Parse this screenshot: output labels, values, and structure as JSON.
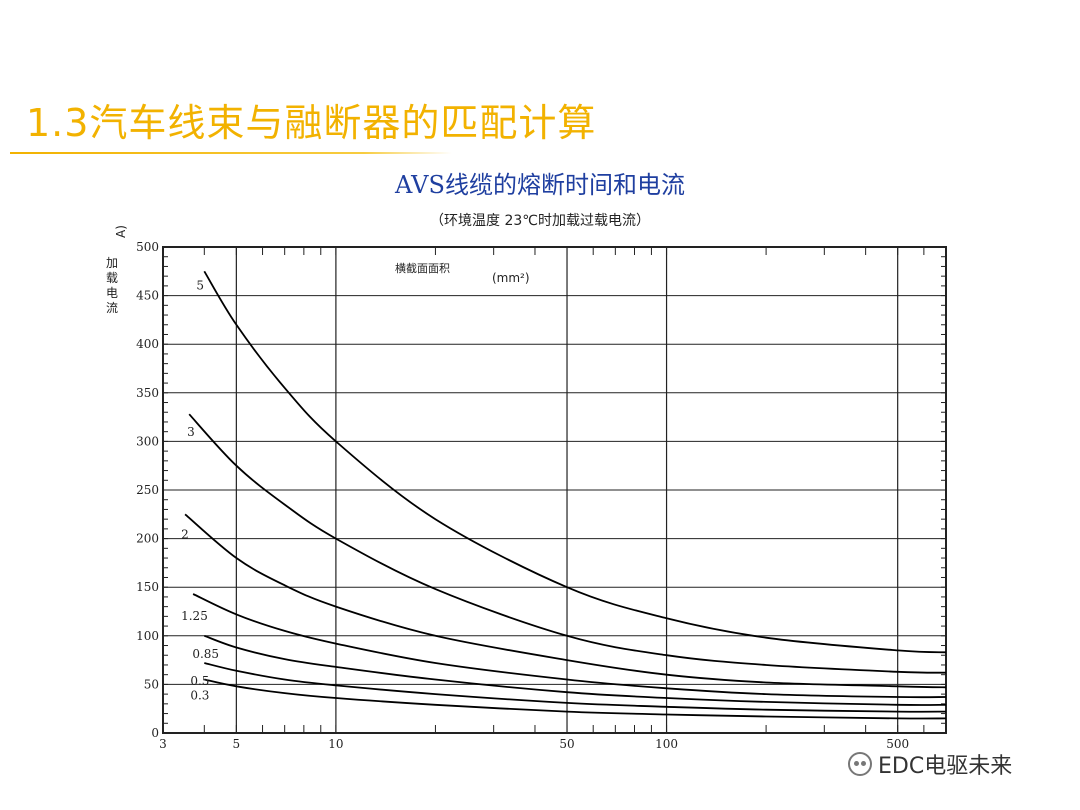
{
  "slide": {
    "title": "1.3汽车线束与融断器的匹配计算"
  },
  "watermark": {
    "icon": "wechat-icon",
    "text": "EDC电驱未来"
  },
  "chart_data": {
    "type": "line",
    "title": "AVS线缆的熔断时间和电流",
    "subtitle": "（环境温度 23℃时加载过载电流）",
    "ylabel": "加载电流",
    "yunit": "A)",
    "legend_title": "横截面面积",
    "legend_unit": "(mm²)",
    "xscale": "log",
    "xlim": [
      3,
      700
    ],
    "ylim": [
      0,
      500
    ],
    "x_ticks": [
      3,
      5,
      10,
      50,
      100,
      500
    ],
    "y_ticks": [
      0,
      50,
      100,
      150,
      200,
      250,
      300,
      350,
      400,
      450,
      500
    ],
    "grid": true,
    "series": [
      {
        "name": "5",
        "x": [
          4,
          5,
          7,
          10,
          20,
          50,
          100,
          200,
          500,
          700
        ],
        "y": [
          475,
          420,
          355,
          300,
          220,
          150,
          118,
          98,
          85,
          83
        ]
      },
      {
        "name": "3",
        "x": [
          3.6,
          5,
          7,
          10,
          20,
          50,
          100,
          200,
          500,
          700
        ],
        "y": [
          328,
          275,
          235,
          200,
          148,
          100,
          80,
          70,
          63,
          62
        ]
      },
      {
        "name": "2",
        "x": [
          3.5,
          5,
          7,
          10,
          20,
          50,
          100,
          200,
          500,
          700
        ],
        "y": [
          225,
          180,
          152,
          130,
          100,
          75,
          60,
          52,
          48,
          47
        ]
      },
      {
        "name": "1.25",
        "x": [
          3.7,
          5,
          7,
          10,
          20,
          50,
          100,
          200,
          500,
          700
        ],
        "y": [
          143,
          122,
          105,
          92,
          72,
          55,
          46,
          40,
          37,
          37
        ]
      },
      {
        "name": "0.85",
        "x": [
          4,
          5,
          7,
          10,
          20,
          50,
          100,
          200,
          500,
          700
        ],
        "y": [
          100,
          88,
          76,
          68,
          55,
          42,
          36,
          32,
          29,
          29
        ]
      },
      {
        "name": "0.5",
        "x": [
          4,
          5,
          7,
          10,
          20,
          50,
          100,
          200,
          500,
          700
        ],
        "y": [
          72,
          64,
          55,
          49,
          40,
          31,
          27,
          24,
          22,
          22
        ]
      },
      {
        "name": "0.3",
        "x": [
          4,
          5,
          7,
          10,
          20,
          50,
          100,
          200,
          500,
          700
        ],
        "y": [
          55,
          48,
          41,
          36,
          29,
          22,
          19,
          17,
          15,
          15
        ]
      }
    ]
  },
  "colors": {
    "title": "#f2b200",
    "chart_title": "#1f3fa0",
    "curve": "#000000",
    "grid": "#222222"
  }
}
